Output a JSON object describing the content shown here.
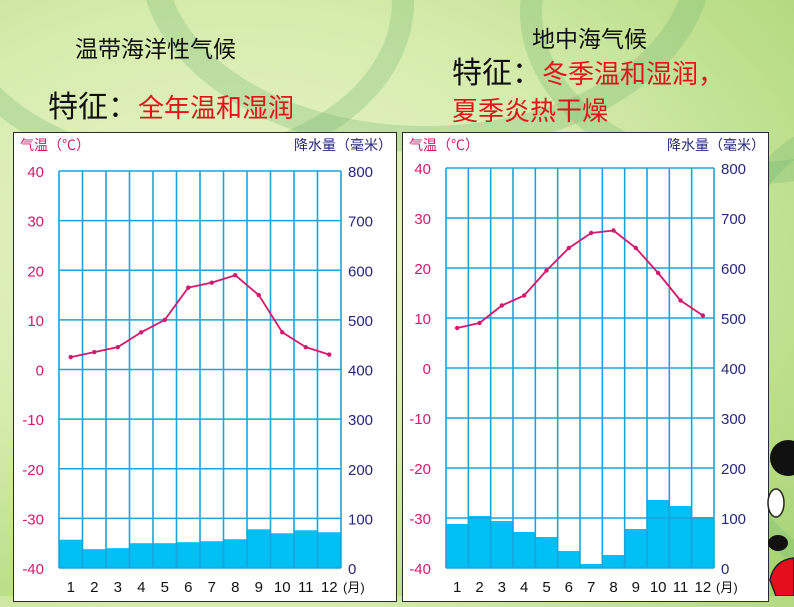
{
  "left_panel": {
    "title": "温带海洋性气候",
    "feature_label": "特征：",
    "feature_text": "全年温和湿润"
  },
  "right_panel": {
    "title": "地中海气候",
    "feature_label": "特征：",
    "feature_text_line1": "冬季温和湿润，",
    "feature_text_line2": "夏季炎热干燥"
  },
  "colors": {
    "temp_line": "#d4186e",
    "temp_axis_text": "#d4186e",
    "precip_axis_text": "#26267a",
    "precip_bar": "#00bff3",
    "grid": "#1aa3dc",
    "feature_text": "#e0141b"
  },
  "chart_data": [
    {
      "type": "bar+line",
      "title": "温带海洋性气候",
      "categories": [
        "1",
        "2",
        "3",
        "4",
        "5",
        "6",
        "7",
        "8",
        "9",
        "10",
        "11",
        "12"
      ],
      "x_unit": "(月)",
      "y_left_label": "气温（℃）",
      "y_right_label": "降水量（毫米）",
      "y_left_ticks": [
        40,
        30,
        20,
        10,
        0,
        -10,
        -20,
        -30,
        -40
      ],
      "y_right_ticks": [
        800,
        700,
        600,
        500,
        400,
        300,
        200,
        100,
        0
      ],
      "y_left_range": [
        -40,
        40
      ],
      "y_right_range": [
        0,
        800
      ],
      "grid": true,
      "series": [
        {
          "name": "气温",
          "type": "line",
          "axis": "left",
          "values": [
            2.5,
            3.5,
            4.5,
            7.5,
            10,
            16.5,
            17.5,
            19,
            15,
            7.5,
            4.5,
            3
          ]
        },
        {
          "name": "降水量",
          "type": "bar",
          "axis": "right",
          "values": [
            57,
            38,
            40,
            50,
            50,
            52,
            54,
            58,
            78,
            70,
            76,
            72
          ]
        }
      ]
    },
    {
      "type": "bar+line",
      "title": "地中海气候",
      "categories": [
        "1",
        "2",
        "3",
        "4",
        "5",
        "6",
        "7",
        "8",
        "9",
        "10",
        "11",
        "12"
      ],
      "x_unit": "(月)",
      "y_left_label": "气温（℃）",
      "y_right_label": "降水量（毫米）",
      "y_left_ticks": [
        40,
        30,
        20,
        10,
        0,
        -10,
        -20,
        -30,
        -40
      ],
      "y_right_ticks": [
        800,
        700,
        600,
        500,
        400,
        300,
        200,
        100,
        0
      ],
      "y_left_range": [
        -40,
        40
      ],
      "y_right_range": [
        0,
        800
      ],
      "grid": true,
      "series": [
        {
          "name": "气温",
          "type": "line",
          "axis": "left",
          "values": [
            8,
            9,
            12.5,
            14.5,
            19.5,
            24,
            27,
            27.5,
            24,
            19,
            13.5,
            10.5
          ]
        },
        {
          "name": "降水量",
          "type": "bar",
          "axis": "right",
          "values": [
            88,
            104,
            94,
            72,
            62,
            34,
            8,
            26,
            78,
            136,
            124,
            102
          ]
        }
      ]
    }
  ]
}
